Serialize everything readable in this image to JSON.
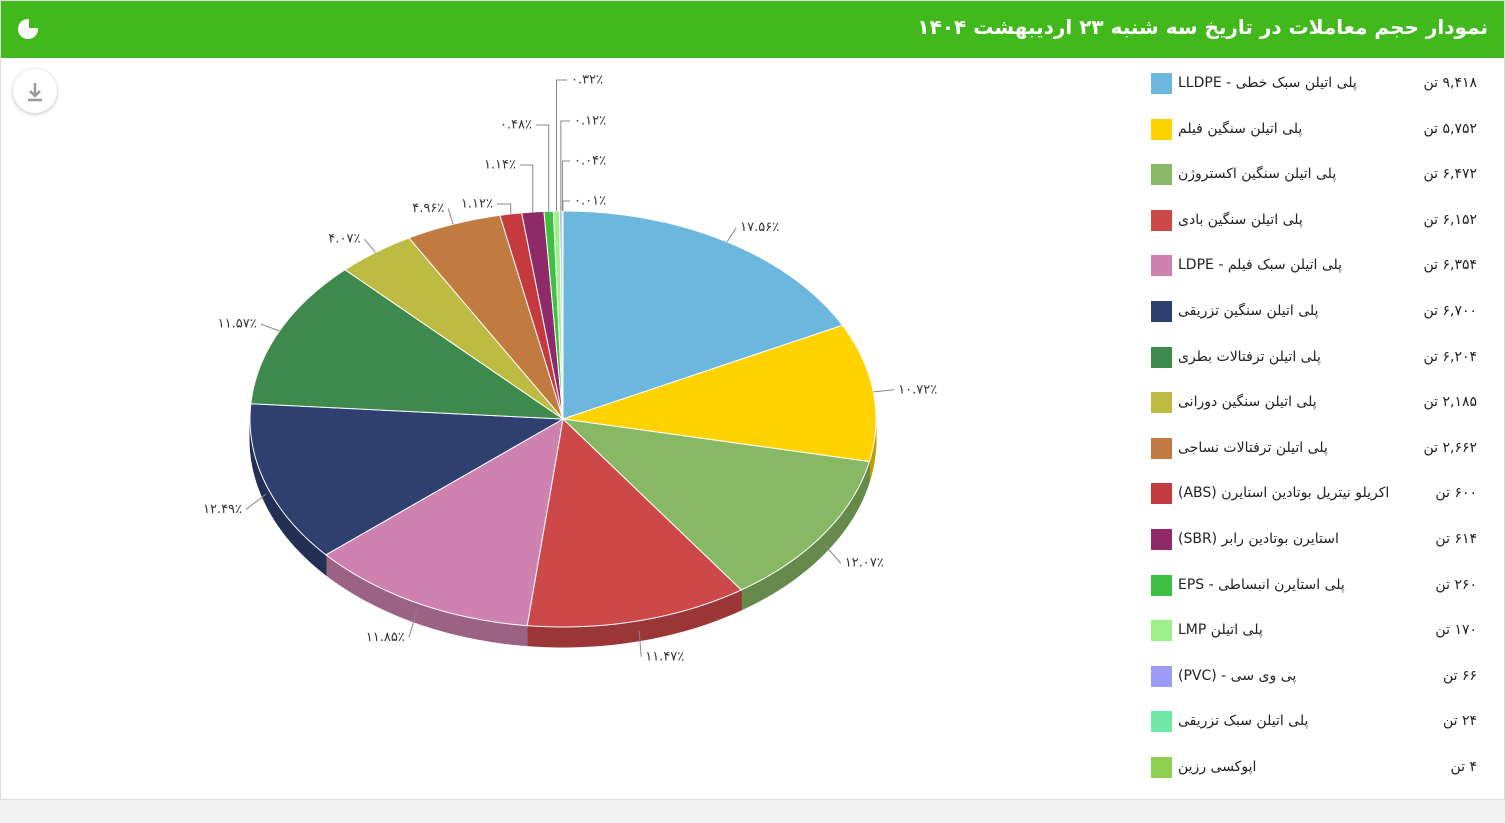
{
  "chart_data": {
    "type": "pie",
    "title": "نمودار حجم معاملات در تاریخ سه شنبه ۲۳ اردیبهشت ۱۴۰۴",
    "categories": [
      "LLDPE - پلی اتیلن سبک خطی",
      "پلی اتیلن سنگین فیلم",
      "پلی اتیلن سنگین اکستروژن",
      "پلی اتیلن سنگین بادی",
      "LDPE - پلی اتیلن سبک فیلم",
      "پلی اتیلن سنگین تزریقی",
      "پلی اتیلن ترفتالات بطری",
      "پلی اتیلن سنگین دورانی",
      "پلی اتیلن ترفتالات نساجی",
      "(ABS) اکریلو نیتریل بوتادین استایرن",
      "(SBR) استایرن بوتادین رابر",
      "EPS - پلی استایرن انبساطی",
      "LMP پلی اتیلن",
      "(PVC) - پی وی سی",
      "پلی اتیلن سبک تزریقی",
      "اپوکسی رزین"
    ],
    "values": [
      17.56,
      10.72,
      12.07,
      11.47,
      11.85,
      12.49,
      11.57,
      4.07,
      4.96,
      1.12,
      1.14,
      0.48,
      0.32,
      0.12,
      0.04,
      0.01
    ],
    "value_labels": [
      "۱۷.۵۶٪",
      "۱۰.۷۲٪",
      "۱۲.۰۷٪",
      "۱۱.۴۷٪",
      "۱۱.۸۵٪",
      "۱۲.۴۹٪",
      "۱۱.۵۷٪",
      "۴.۰۷٪",
      "۴.۹۶٪",
      "۱.۱۲٪",
      "۱.۱۴٪",
      "۰.۴۸٪",
      "۰.۳۲٪",
      "۰.۱۲٪",
      "۰.۰۴٪",
      "۰.۰۱٪"
    ],
    "amount_labels": [
      "۹,۴۱۸ تن",
      "۵,۷۵۲ تن",
      "۶,۴۷۲ تن",
      "۶,۱۵۲ تن",
      "۶,۳۵۴ تن",
      "۶,۷۰۰ تن",
      "۶,۲۰۴ تن",
      "۲,۱۸۵ تن",
      "۲,۶۶۲ تن",
      "۶۰۰ تن",
      "۶۱۴ تن",
      "۲۶۰ تن",
      "۱۷۰ تن",
      "۶۶ تن",
      "۲۴ تن",
      "۴ تن"
    ],
    "colors": [
      "#6bb7de",
      "#ffd200",
      "#87b864",
      "#cd4848",
      "#cf82b0",
      "#2e3f70",
      "#3e8a4c",
      "#bdbb41",
      "#c17a3f",
      "#c53a3f",
      "#8e2a68",
      "#3ec043",
      "#9ef08d",
      "#9c9cf7",
      "#6ee7a7",
      "#8fcf4f"
    ]
  }
}
